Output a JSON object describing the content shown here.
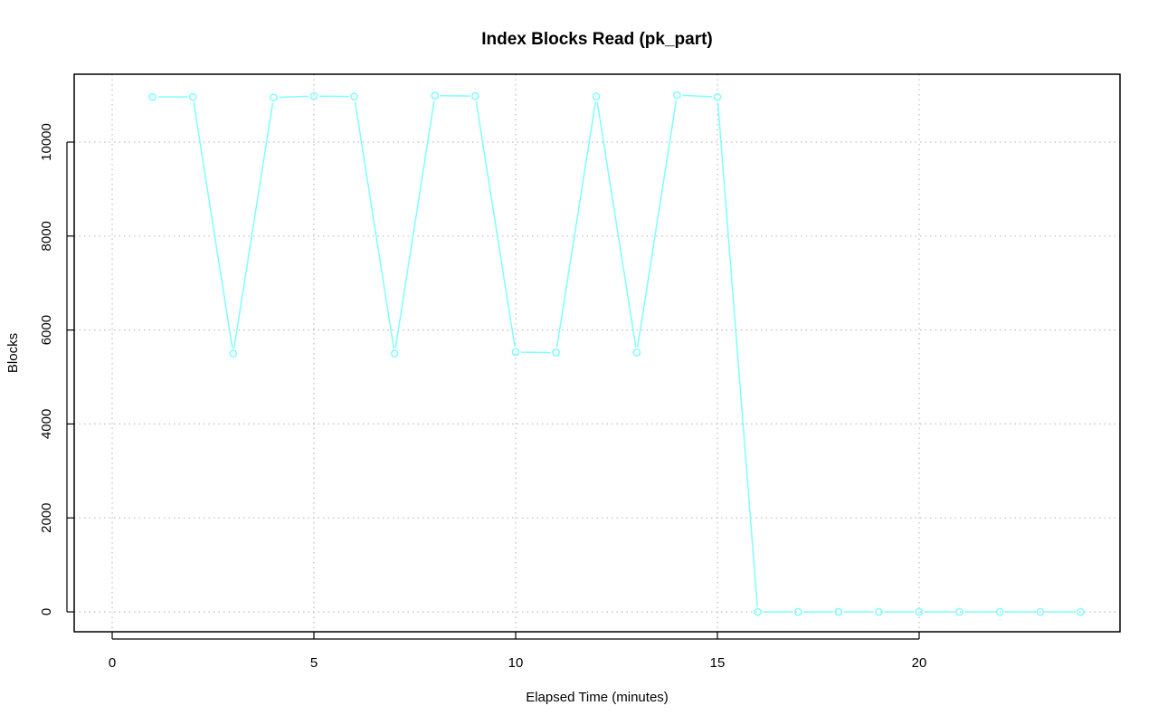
{
  "chart_data": {
    "type": "line",
    "title": "Index Blocks Read (pk_part)",
    "xlabel": "Elapsed Time (minutes)",
    "ylabel": "Blocks",
    "xlim": [
      0,
      25
    ],
    "ylim": [
      0,
      11000
    ],
    "x_ticks": [
      0,
      5,
      10,
      15,
      20
    ],
    "y_ticks": [
      0,
      2000,
      4000,
      6000,
      8000,
      10000
    ],
    "grid": true,
    "series_color": "#7fffff",
    "x": [
      1,
      2,
      3,
      4,
      5,
      6,
      7,
      8,
      9,
      10,
      11,
      12,
      13,
      14,
      15,
      16,
      17,
      18,
      19,
      20,
      21,
      22,
      23,
      24
    ],
    "values": [
      10960,
      10960,
      5500,
      10950,
      10980,
      10970,
      5500,
      10990,
      10980,
      5530,
      5520,
      10970,
      5520,
      11000,
      10960,
      0,
      0,
      0,
      0,
      0,
      0,
      0,
      0,
      0
    ]
  }
}
